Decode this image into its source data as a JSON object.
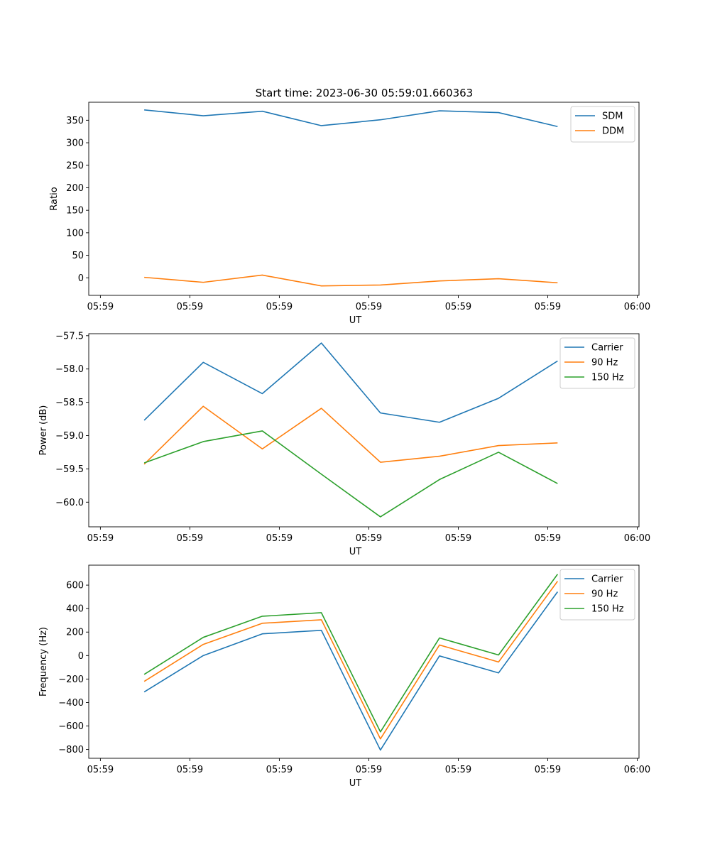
{
  "figure": {
    "title": "Start time: 2023-06-30 05:59:01.660363"
  },
  "chart_data": [
    {
      "type": "line",
      "title": "Start time: 2023-06-30 05:59:01.660363",
      "xlabel": "UT",
      "ylabel": "Ratio",
      "x_tick_labels": [
        "05:59",
        "05:59",
        "05:59",
        "05:59",
        "05:59",
        "05:59",
        "06:00"
      ],
      "x_tick_positions": [
        0,
        1,
        2,
        3,
        4,
        5,
        6
      ],
      "xlim": [
        -0.13,
        6.02
      ],
      "x": [
        0.49,
        1.15,
        1.81,
        2.47,
        3.13,
        3.79,
        4.45,
        5.11
      ],
      "ylim": [
        -39,
        390
      ],
      "y_ticks": [
        0,
        50,
        100,
        150,
        200,
        250,
        300,
        350
      ],
      "y_tick_labels": [
        "0",
        "50",
        "100",
        "150",
        "200",
        "250",
        "300",
        "350"
      ],
      "grid": false,
      "legend": "top-right",
      "series": [
        {
          "name": "SDM",
          "color": "#1f77b4",
          "values": [
            373,
            360,
            370,
            338,
            351,
            371,
            367,
            336
          ]
        },
        {
          "name": "DDM",
          "color": "#ff7f0e",
          "values": [
            1,
            -10,
            6,
            -18,
            -16,
            -7,
            -2,
            -11
          ]
        }
      ]
    },
    {
      "type": "line",
      "xlabel": "UT",
      "ylabel": "Power (dB)",
      "x_tick_labels": [
        "05:59",
        "05:59",
        "05:59",
        "05:59",
        "05:59",
        "05:59",
        "06:00"
      ],
      "x_tick_positions": [
        0,
        1,
        2,
        3,
        4,
        5,
        6
      ],
      "xlim": [
        -0.13,
        6.02
      ],
      "x": [
        0.49,
        1.15,
        1.81,
        2.47,
        3.13,
        3.79,
        4.45,
        5.11
      ],
      "ylim": [
        -60.37,
        -57.47
      ],
      "y_ticks": [
        -60.0,
        -59.5,
        -59.0,
        -58.5,
        -58.0,
        -57.5
      ],
      "y_tick_labels": [
        "−60.0",
        "−59.5",
        "−59.0",
        "−58.5",
        "−58.0",
        "−57.5"
      ],
      "grid": false,
      "legend": "top-right",
      "series": [
        {
          "name": "Carrier",
          "color": "#1f77b4",
          "values": [
            -58.77,
            -57.9,
            -58.37,
            -57.61,
            -58.66,
            -58.8,
            -58.44,
            -57.88
          ]
        },
        {
          "name": "90 Hz",
          "color": "#ff7f0e",
          "values": [
            -59.43,
            -58.56,
            -59.2,
            -58.59,
            -59.4,
            -59.31,
            -59.15,
            -59.11
          ]
        },
        {
          "name": "150 Hz",
          "color": "#2ca02c",
          "values": [
            -59.41,
            -59.09,
            -58.93,
            -59.58,
            -60.22,
            -59.66,
            -59.25,
            -59.72
          ]
        }
      ]
    },
    {
      "type": "line",
      "xlabel": "UT",
      "ylabel": "Frequency (Hz)",
      "x_tick_labels": [
        "05:59",
        "05:59",
        "05:59",
        "05:59",
        "05:59",
        "05:59",
        "06:00"
      ],
      "x_tick_positions": [
        0,
        1,
        2,
        3,
        4,
        5,
        6
      ],
      "xlim": [
        -0.13,
        6.02
      ],
      "x": [
        0.49,
        1.15,
        1.81,
        2.47,
        3.13,
        3.79,
        4.45,
        5.11
      ],
      "ylim": [
        -875,
        770
      ],
      "y_ticks": [
        -800,
        -600,
        -400,
        -200,
        0,
        200,
        400,
        600
      ],
      "y_tick_labels": [
        "−800",
        "−600",
        "−400",
        "−200",
        "0",
        "200",
        "400",
        "600"
      ],
      "grid": false,
      "legend": "top-right",
      "series": [
        {
          "name": "Carrier",
          "color": "#1f77b4",
          "values": [
            -310,
            0,
            185,
            215,
            -805,
            -3,
            -148,
            543
          ]
        },
        {
          "name": "90 Hz",
          "color": "#ff7f0e",
          "values": [
            -220,
            95,
            275,
            305,
            -710,
            90,
            -55,
            633
          ]
        },
        {
          "name": "150 Hz",
          "color": "#2ca02c",
          "values": [
            -160,
            155,
            335,
            365,
            -650,
            150,
            5,
            693
          ]
        }
      ]
    }
  ]
}
